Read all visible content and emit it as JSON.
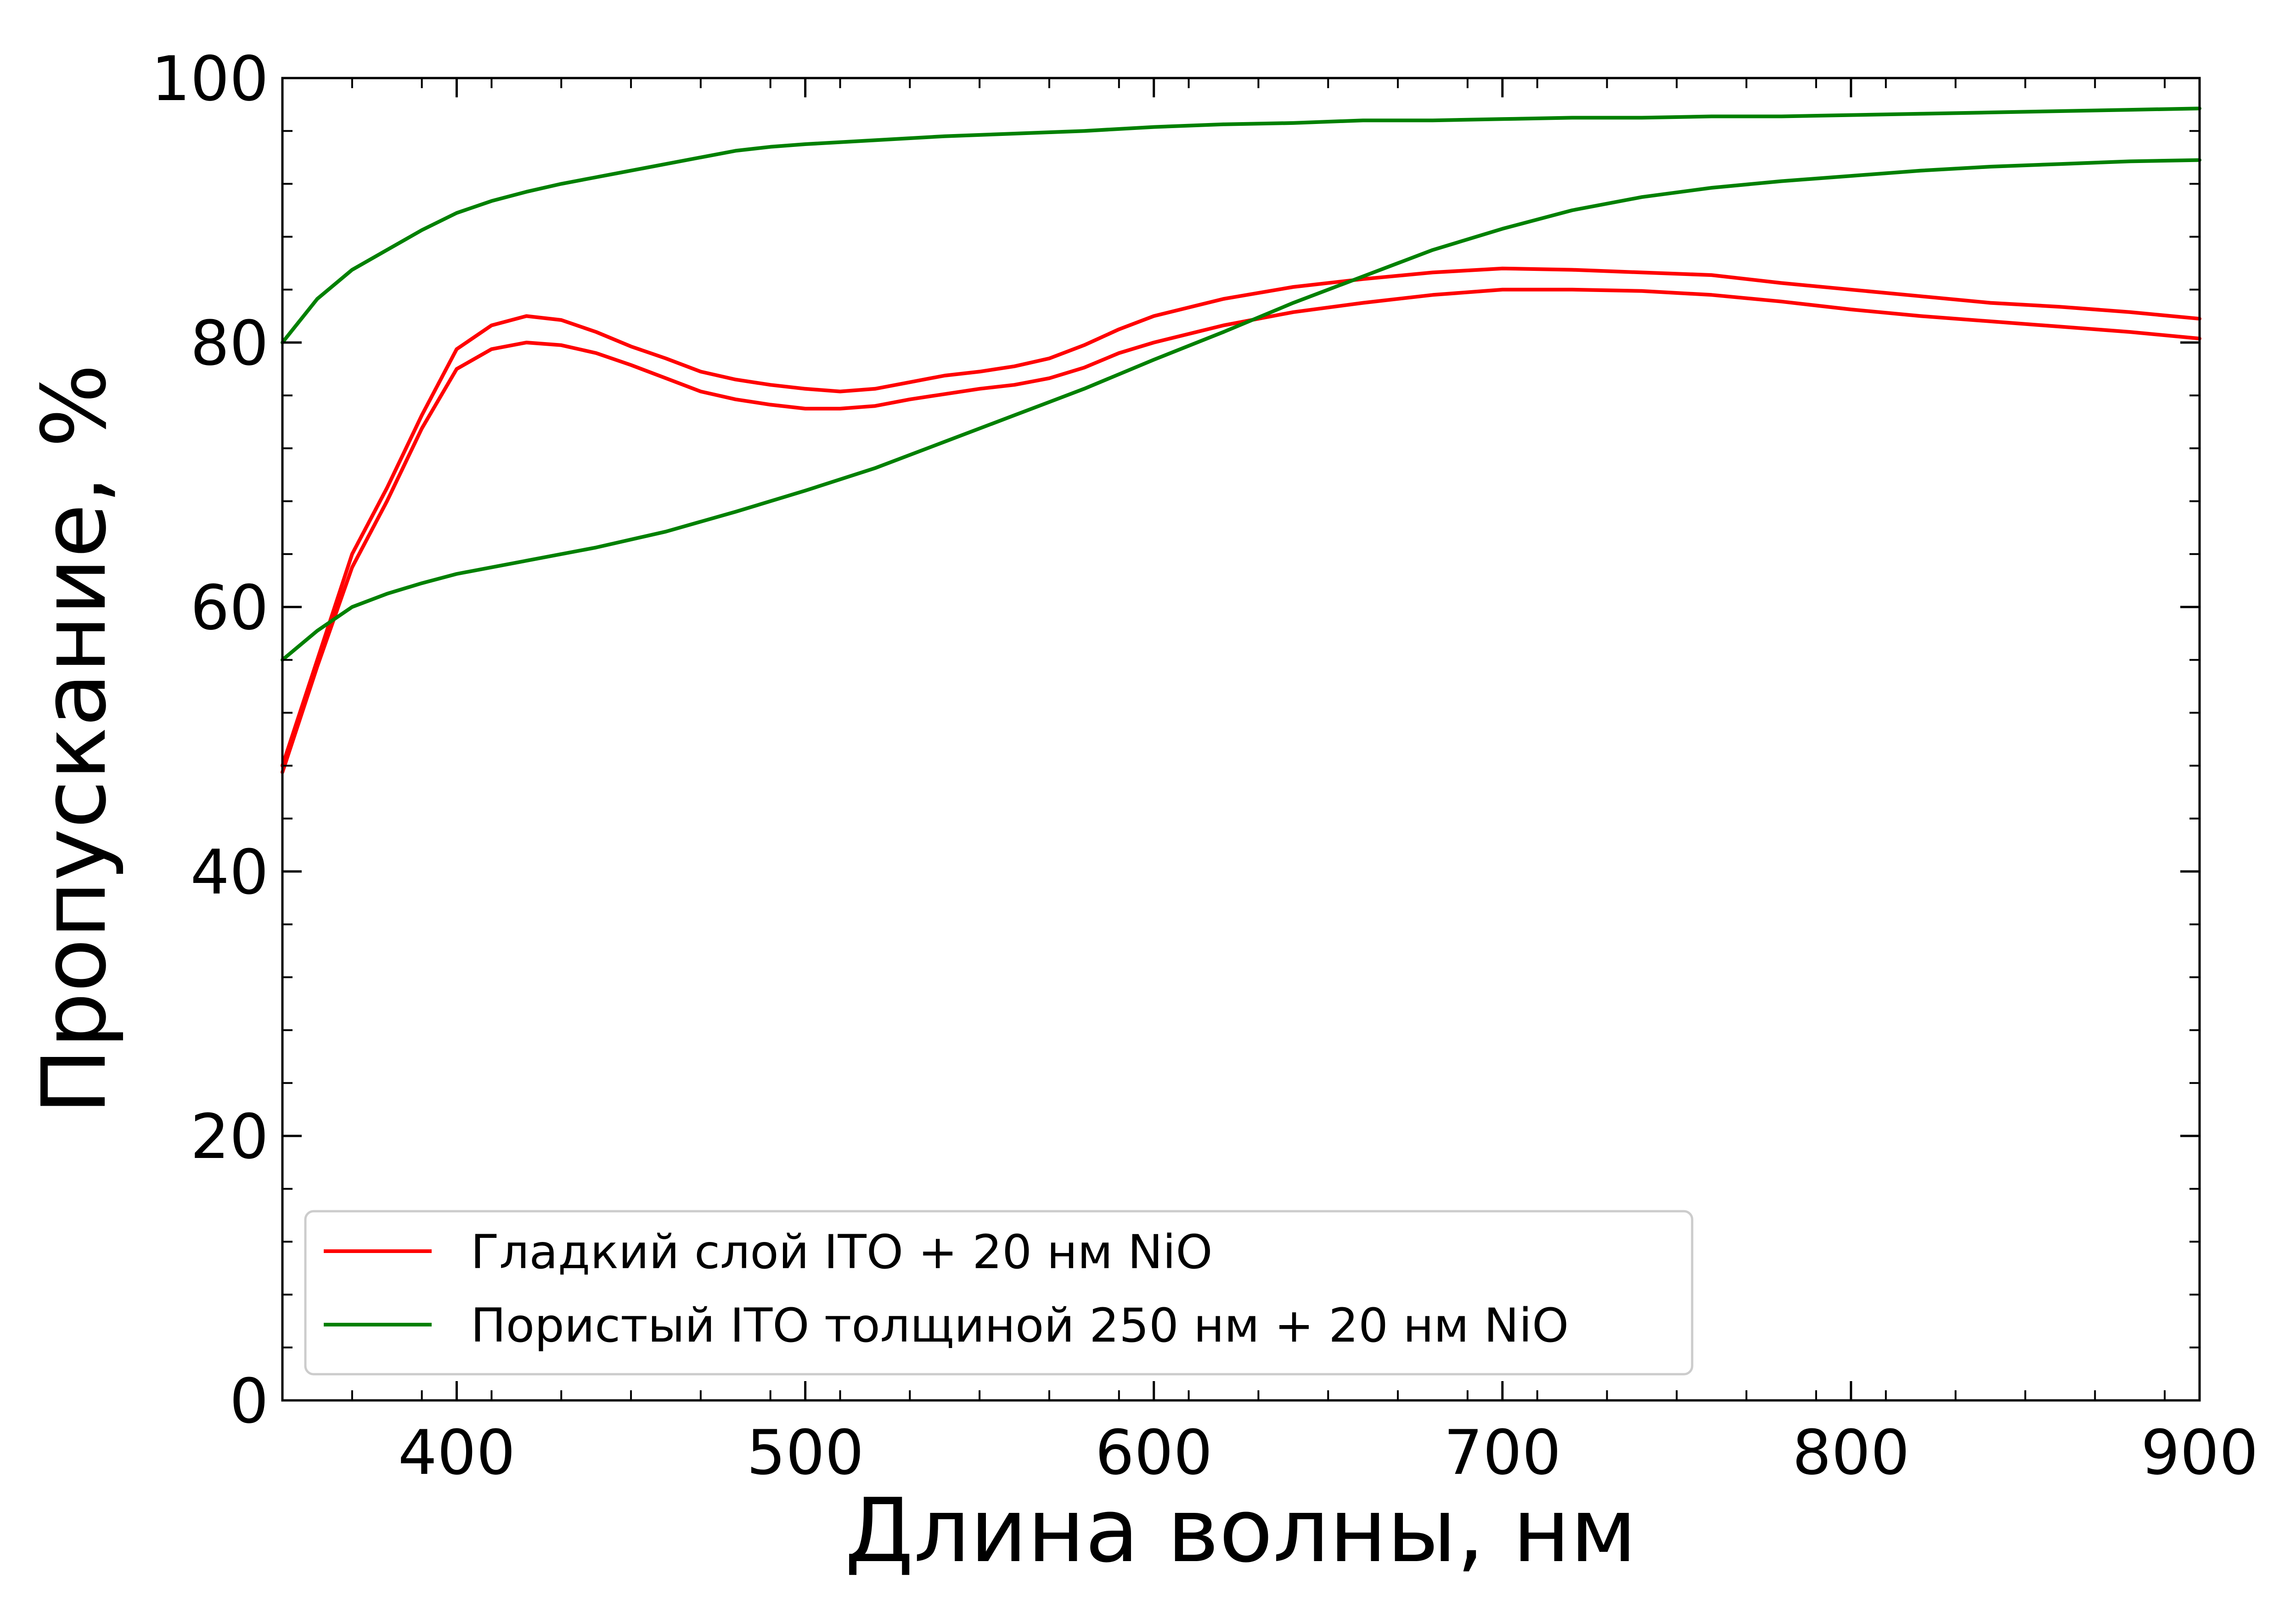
{
  "chart_data": {
    "type": "line",
    "title": "",
    "xlabel": "Длина волны, нм",
    "ylabel": "Пропускание, %",
    "xlim": [
      350,
      900
    ],
    "ylim": [
      0,
      100
    ],
    "x_ticks": [
      400,
      500,
      600,
      700,
      800,
      900
    ],
    "y_ticks": [
      0,
      20,
      40,
      60,
      80,
      100
    ],
    "grid": false,
    "legend_position": "bottom-left",
    "legend": [
      {
        "label": "Гладкий слой ITO + 20 нм NiO",
        "color": "#ff0000"
      },
      {
        "label": "Пористый ITO толщиной 250 нм + 20 нм NiO",
        "color": "#008000"
      }
    ],
    "series": [
      {
        "color": "#ff0000",
        "x": [
          350,
          360,
          370,
          380,
          390,
          400,
          410,
          420,
          430,
          440,
          450,
          460,
          470,
          480,
          490,
          500,
          510,
          520,
          530,
          540,
          550,
          560,
          570,
          580,
          590,
          600,
          620,
          640,
          660,
          680,
          700,
          720,
          740,
          760,
          780,
          800,
          820,
          840,
          860,
          880,
          900
        ],
        "y": [
          48,
          56,
          64,
          69,
          74.5,
          79.5,
          81.3,
          82,
          81.7,
          80.8,
          79.7,
          78.8,
          77.8,
          77.2,
          76.8,
          76.5,
          76.3,
          76.5,
          77,
          77.5,
          77.8,
          78.2,
          78.8,
          79.8,
          81,
          82,
          83.3,
          84.2,
          84.8,
          85.3,
          85.6,
          85.5,
          85.3,
          85.1,
          84.5,
          84,
          83.5,
          83,
          82.7,
          82.3,
          81.8
        ]
      },
      {
        "color": "#ff0000",
        "x": [
          350,
          360,
          370,
          380,
          390,
          400,
          410,
          420,
          430,
          440,
          450,
          460,
          470,
          480,
          490,
          500,
          510,
          520,
          530,
          540,
          550,
          560,
          570,
          580,
          590,
          600,
          620,
          640,
          660,
          680,
          700,
          720,
          740,
          760,
          780,
          800,
          820,
          840,
          860,
          880,
          900
        ],
        "y": [
          47.5,
          55.5,
          63,
          68,
          73.5,
          78,
          79.5,
          80,
          79.8,
          79.2,
          78.3,
          77.3,
          76.3,
          75.7,
          75.3,
          75,
          75,
          75.2,
          75.7,
          76.1,
          76.5,
          76.8,
          77.3,
          78.1,
          79.2,
          80,
          81.3,
          82.3,
          83,
          83.6,
          84,
          84,
          83.9,
          83.6,
          83.1,
          82.5,
          82,
          81.6,
          81.2,
          80.8,
          80.3
        ]
      },
      {
        "color": "#008000",
        "x": [
          350,
          360,
          370,
          380,
          390,
          400,
          410,
          420,
          430,
          440,
          450,
          460,
          470,
          480,
          490,
          500,
          520,
          540,
          560,
          580,
          600,
          620,
          640,
          660,
          680,
          700,
          720,
          740,
          760,
          780,
          800,
          820,
          840,
          860,
          880,
          900
        ],
        "y": [
          80,
          83.3,
          85.5,
          87,
          88.5,
          89.8,
          90.7,
          91.4,
          92,
          92.5,
          93,
          93.5,
          94,
          94.5,
          94.8,
          95,
          95.3,
          95.6,
          95.8,
          96,
          96.3,
          96.5,
          96.6,
          96.8,
          96.8,
          96.9,
          97,
          97,
          97.1,
          97.1,
          97.2,
          97.3,
          97.4,
          97.5,
          97.6,
          97.7
        ]
      },
      {
        "color": "#008000",
        "x": [
          350,
          360,
          370,
          380,
          390,
          400,
          420,
          440,
          460,
          480,
          500,
          520,
          540,
          560,
          580,
          600,
          620,
          640,
          660,
          680,
          700,
          720,
          740,
          760,
          780,
          800,
          820,
          840,
          860,
          880,
          900
        ],
        "y": [
          56,
          58.2,
          60,
          61,
          61.8,
          62.5,
          63.5,
          64.5,
          65.7,
          67.2,
          68.8,
          70.5,
          72.5,
          74.5,
          76.5,
          78.7,
          80.8,
          83,
          85,
          87,
          88.6,
          90,
          91,
          91.7,
          92.2,
          92.6,
          93,
          93.3,
          93.5,
          93.7,
          93.8
        ]
      }
    ]
  }
}
